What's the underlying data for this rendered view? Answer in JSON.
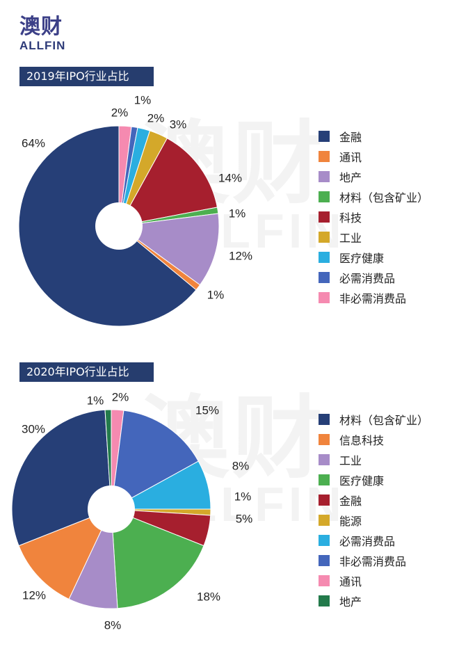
{
  "logo": {
    "main": "澳财",
    "sub": "ALLFIN"
  },
  "watermark": {
    "main": "澳财",
    "sub": "ALLFIN"
  },
  "chart_data": [
    {
      "type": "pie",
      "title": "2019年IPO行业占比",
      "series": [
        {
          "name": "金融",
          "value": 64,
          "label": "64%",
          "color": "#263f77"
        },
        {
          "name": "通讯",
          "value": 1,
          "label": "1%",
          "color": "#f0843d"
        },
        {
          "name": "地产",
          "value": 12,
          "label": "12%",
          "color": "#a78cc8"
        },
        {
          "name": "材料（包含矿业）",
          "value": 1,
          "label": "1%",
          "color": "#4caf50"
        },
        {
          "name": "科技",
          "value": 14,
          "label": "14%",
          "color": "#a61f2e"
        },
        {
          "name": "工业",
          "value": 3,
          "label": "3%",
          "color": "#d4a82a"
        },
        {
          "name": "医疗健康",
          "value": 2,
          "label": "2%",
          "color": "#2aaee0"
        },
        {
          "name": "必需消费品",
          "value": 1,
          "label": "1%",
          "color": "#4466bb"
        },
        {
          "name": "非必需消费品",
          "value": 2,
          "label": "2%",
          "color": "#f58ab0"
        }
      ],
      "clockwise_order": [
        "非必需消费品",
        "必需消费品",
        "医疗健康",
        "工业",
        "科技",
        "材料（包含矿业）",
        "地产",
        "通讯",
        "金融"
      ]
    },
    {
      "type": "pie",
      "title": "2020年IPO行业占比",
      "series": [
        {
          "name": "材料（包含矿业）",
          "value": 30,
          "label": "30%",
          "color": "#263f77"
        },
        {
          "name": "信息科技",
          "value": 12,
          "label": "12%",
          "color": "#f0843d"
        },
        {
          "name": "工业",
          "value": 8,
          "label": "8%",
          "color": "#a78cc8"
        },
        {
          "name": "医疗健康",
          "value": 18,
          "label": "18%",
          "color": "#4caf50"
        },
        {
          "name": "金融",
          "value": 5,
          "label": "5%",
          "color": "#a61f2e"
        },
        {
          "name": "能源",
          "value": 1,
          "label": "1%",
          "color": "#d4a82a"
        },
        {
          "name": "必需消费品",
          "value": 8,
          "label": "8%",
          "color": "#2aaee0"
        },
        {
          "name": "非必需消费品",
          "value": 15,
          "label": "15%",
          "color": "#4466bb"
        },
        {
          "name": "通讯",
          "value": 2,
          "label": "2%",
          "color": "#f58ab0"
        },
        {
          "name": "地产",
          "value": 1,
          "label": "1%",
          "color": "#237a4b"
        }
      ],
      "clockwise_order": [
        "通讯",
        "非必需消费品",
        "必需消费品",
        "能源",
        "金融",
        "医疗健康",
        "工业",
        "信息科技",
        "材料（包含矿业）",
        "地产"
      ]
    }
  ]
}
